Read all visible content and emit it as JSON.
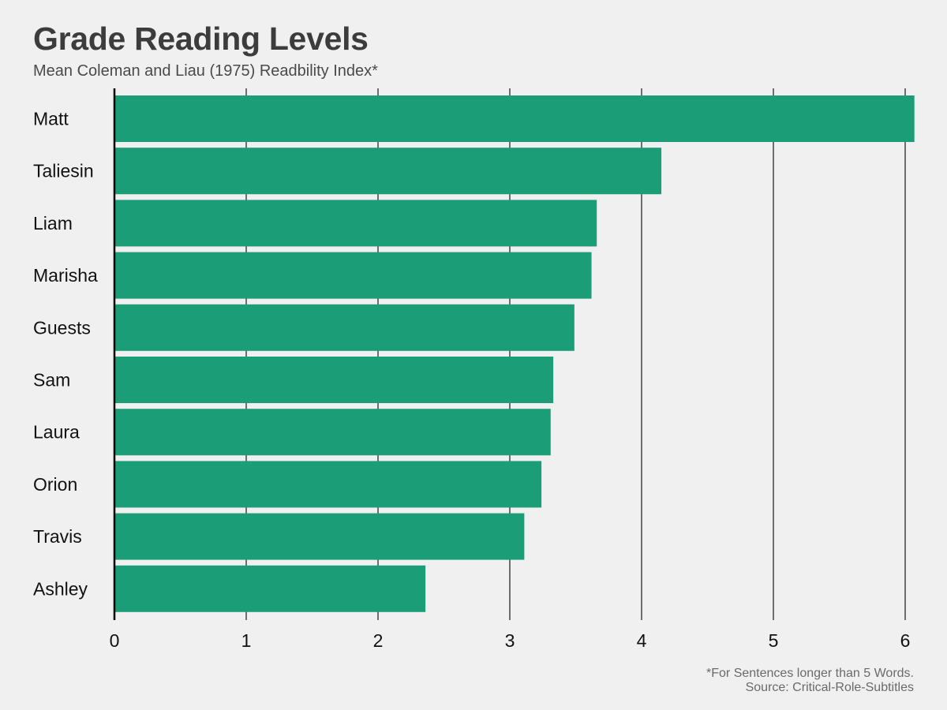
{
  "colors": {
    "background": "#f0f0f0",
    "bar": "#1b9e77",
    "grid": "#6e6e6e",
    "axis": "#000000"
  },
  "chart_data": {
    "type": "bar",
    "orientation": "horizontal",
    "title": "Grade Reading Levels",
    "subtitle": "Mean Coleman and Liau (1975) Readbility Index*",
    "categories": [
      "Matt",
      "Taliesin",
      "Liam",
      "Marisha",
      "Guests",
      "Sam",
      "Laura",
      "Orion",
      "Travis",
      "Ashley"
    ],
    "values": [
      6.07,
      4.15,
      3.66,
      3.62,
      3.49,
      3.33,
      3.31,
      3.24,
      3.11,
      2.36
    ],
    "xlim": [
      0,
      6
    ],
    "xticks": [
      "0",
      "1",
      "2",
      "3",
      "4",
      "5",
      "6"
    ],
    "grid": "vertical",
    "caption": [
      "*For Sentences longer than 5 Words.",
      "Source: Critical-Role-Subtitles"
    ]
  }
}
